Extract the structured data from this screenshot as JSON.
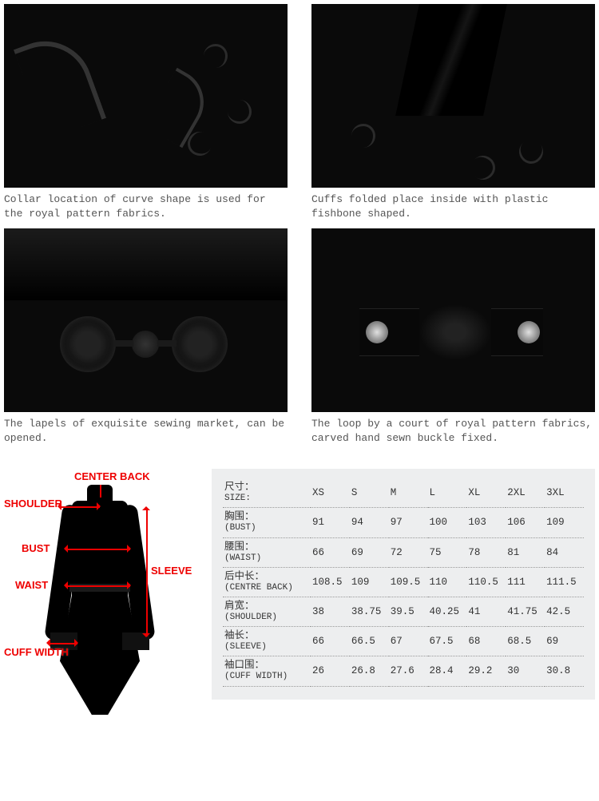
{
  "details": [
    {
      "caption": "Collar location of curve shape is used for the royal pattern fabrics."
    },
    {
      "caption": "Cuffs folded place inside with plastic fishbone shaped."
    },
    {
      "caption": "The lapels of exquisite sewing market, can be opened."
    },
    {
      "caption": "The loop by a court of royal pattern fabrics, carved hand sewn buckle fixed."
    }
  ],
  "diagram_labels": {
    "center_back": "CENTER BACK",
    "shoulder": "SHOULDER",
    "bust": "BUST",
    "waist": "WAIST",
    "sleeve": "SLEEVE",
    "cuff_width": "CUFF WIDTH"
  },
  "size_table": {
    "headers": {
      "cn": "尺寸：",
      "en": "SIZE:",
      "sizes": [
        "XS",
        "S",
        "M",
        "L",
        "XL",
        "2XL",
        "3XL"
      ]
    },
    "rows": [
      {
        "cn": "胸围：",
        "en": "(BUST)",
        "values": [
          "91",
          "94",
          "97",
          "100",
          "103",
          "106",
          "109"
        ]
      },
      {
        "cn": "腰围：",
        "en": "(WAIST)",
        "values": [
          "66",
          "69",
          "72",
          "75",
          "78",
          "81",
          "84"
        ]
      },
      {
        "cn": "后中长：",
        "en": "(CENTRE BACK)",
        "values": [
          "108.5",
          "109",
          "109.5",
          "110",
          "110.5",
          "111",
          "111.5"
        ]
      },
      {
        "cn": "肩宽：",
        "en": "(SHOULDER)",
        "values": [
          "38",
          "38.75",
          "39.5",
          "40.25",
          "41",
          "41.75",
          "42.5"
        ]
      },
      {
        "cn": "袖长：",
        "en": "(SLEEVE)",
        "values": [
          "66",
          "66.5",
          "67",
          "67.5",
          "68",
          "68.5",
          "69"
        ]
      },
      {
        "cn": "袖口围：",
        "en": "(CUFF WIDTH)",
        "values": [
          "26",
          "26.8",
          "27.6",
          "28.4",
          "29.2",
          "30",
          "30.8"
        ]
      }
    ]
  },
  "colors": {
    "measure_red": "#e00000",
    "panel_bg": "#edeeef",
    "fabric_dark": "#0a0a0a"
  }
}
